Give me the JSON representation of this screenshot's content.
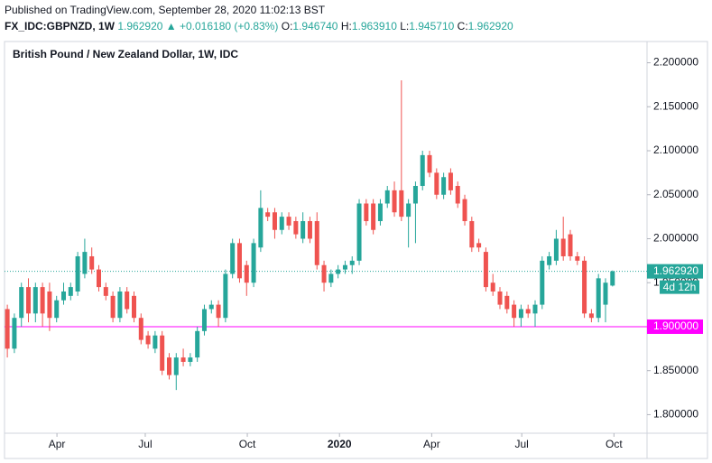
{
  "header": {
    "published": "Published on TradingView.com, September 28, 2020 11:02:13 BST",
    "symbol": "FX_IDC:GBPNZD, 1W",
    "last": "1.962920",
    "change": "▲ +0.016180 (+0.83%)",
    "ohlc": [
      {
        "label": "O:",
        "value": "1.946740"
      },
      {
        "label": "H:",
        "value": "1.963910"
      },
      {
        "label": "L:",
        "value": "1.945710"
      },
      {
        "label": "C:",
        "value": "1.962920"
      }
    ]
  },
  "chart_data": {
    "type": "candlestick",
    "title": "British Pound / New Zealand Dollar, 1W, IDC",
    "up_color": "#26a69a",
    "down_color": "#ef5350",
    "candles": [
      [
        1.92,
        1.925,
        1.865,
        1.875
      ],
      [
        1.875,
        1.915,
        1.87,
        1.91
      ],
      [
        1.91,
        1.95,
        1.9,
        1.945
      ],
      [
        1.945,
        1.955,
        1.905,
        1.915
      ],
      [
        1.915,
        1.95,
        1.905,
        1.945
      ],
      [
        1.945,
        1.95,
        1.9,
        1.915
      ],
      [
        1.94,
        1.95,
        1.895,
        1.91
      ],
      [
        1.91,
        1.935,
        1.905,
        1.93
      ],
      [
        1.93,
        1.95,
        1.925,
        1.94
      ],
      [
        1.935,
        1.95,
        1.93,
        1.945
      ],
      [
        1.94,
        1.985,
        1.935,
        1.98
      ],
      [
        1.96,
        2.0,
        1.955,
        1.985
      ],
      [
        1.98,
        1.99,
        1.96,
        1.965
      ],
      [
        1.965,
        1.97,
        1.94,
        1.945
      ],
      [
        1.945,
        1.95,
        1.93,
        1.935
      ],
      [
        1.935,
        1.94,
        1.905,
        1.91
      ],
      [
        1.91,
        1.945,
        1.905,
        1.94
      ],
      [
        1.94,
        1.945,
        1.915,
        1.92
      ],
      [
        1.935,
        1.94,
        1.905,
        1.91
      ],
      [
        1.91,
        1.915,
        1.88,
        1.885
      ],
      [
        1.89,
        1.895,
        1.875,
        1.88
      ],
      [
        1.875,
        1.895,
        1.87,
        1.89
      ],
      [
        1.89,
        1.895,
        1.845,
        1.85
      ],
      [
        1.865,
        1.87,
        1.84,
        1.845
      ],
      [
        1.845,
        1.87,
        1.828,
        1.865
      ],
      [
        1.865,
        1.875,
        1.855,
        1.86
      ],
      [
        1.86,
        1.87,
        1.855,
        1.865
      ],
      [
        1.865,
        1.9,
        1.86,
        1.895
      ],
      [
        1.895,
        1.925,
        1.89,
        1.92
      ],
      [
        1.92,
        1.93,
        1.915,
        1.925
      ],
      [
        1.925,
        1.93,
        1.9,
        1.91
      ],
      [
        1.91,
        1.965,
        1.905,
        1.96
      ],
      [
        1.96,
        2.0,
        1.955,
        1.995
      ],
      [
        1.995,
        2.0,
        1.95,
        1.955
      ],
      [
        1.97,
        1.975,
        1.935,
        1.95
      ],
      [
        1.95,
        2.0,
        1.945,
        1.995
      ],
      [
        1.99,
        2.055,
        1.985,
        2.035
      ],
      [
        2.03,
        2.035,
        2.02,
        2.025
      ],
      [
        2.03,
        2.035,
        2.0,
        2.01
      ],
      [
        2.01,
        2.03,
        2.005,
        2.025
      ],
      [
        2.025,
        2.03,
        2.01,
        2.015
      ],
      [
        2.02,
        2.025,
        2.0,
        2.005
      ],
      [
        2.0,
        2.03,
        1.995,
        2.02
      ],
      [
        2.02,
        2.025,
        1.995,
        2.0
      ],
      [
        2.02,
        2.03,
        1.965,
        1.97
      ],
      [
        1.97,
        1.975,
        1.94,
        1.95
      ],
      [
        1.95,
        1.965,
        1.945,
        1.96
      ],
      [
        1.96,
        1.97,
        1.955,
        1.965
      ],
      [
        1.965,
        1.975,
        1.96,
        1.97
      ],
      [
        1.97,
        1.98,
        1.96,
        1.975
      ],
      [
        1.975,
        2.045,
        1.97,
        2.04
      ],
      [
        2.04,
        2.045,
        2.015,
        2.02
      ],
      [
        2.04,
        2.045,
        2.005,
        2.01
      ],
      [
        2.02,
        2.045,
        2.015,
        2.04
      ],
      [
        2.04,
        2.06,
        2.035,
        2.055
      ],
      [
        2.055,
        2.065,
        2.025,
        2.03
      ],
      [
        2.055,
        2.18,
        2.02,
        2.025
      ],
      [
        2.025,
        2.045,
        1.99,
        2.04
      ],
      [
        2.04,
        2.065,
        1.995,
        2.06
      ],
      [
        2.06,
        2.1,
        2.055,
        2.095
      ],
      [
        2.095,
        2.1,
        2.07,
        2.075
      ],
      [
        2.075,
        2.08,
        2.045,
        2.05
      ],
      [
        2.05,
        2.075,
        2.045,
        2.07
      ],
      [
        2.075,
        2.08,
        2.05,
        2.055
      ],
      [
        2.06,
        2.065,
        2.035,
        2.04
      ],
      [
        2.045,
        2.05,
        2.015,
        2.02
      ],
      [
        2.02,
        2.025,
        1.985,
        1.99
      ],
      [
        1.995,
        2.0,
        1.985,
        1.99
      ],
      [
        1.985,
        1.99,
        1.94,
        1.945
      ],
      [
        1.95,
        1.96,
        1.935,
        1.94
      ],
      [
        1.94,
        1.945,
        1.92,
        1.925
      ],
      [
        1.935,
        1.94,
        1.915,
        1.92
      ],
      [
        1.925,
        1.93,
        1.9,
        1.91
      ],
      [
        1.91,
        1.925,
        1.9,
        1.92
      ],
      [
        1.92,
        1.925,
        1.91,
        1.915
      ],
      [
        1.915,
        1.93,
        1.9,
        1.925
      ],
      [
        1.925,
        1.98,
        1.92,
        1.975
      ],
      [
        1.97,
        1.985,
        1.965,
        1.98
      ],
      [
        1.975,
        2.01,
        1.97,
        2.0
      ],
      [
        2.0,
        2.025,
        1.975,
        1.98
      ],
      [
        2.005,
        2.01,
        1.975,
        1.98
      ],
      [
        1.98,
        1.985,
        1.97,
        1.975
      ],
      [
        1.975,
        1.98,
        1.91,
        1.915
      ],
      [
        1.915,
        1.92,
        1.905,
        1.91
      ],
      [
        1.91,
        1.96,
        1.905,
        1.955
      ],
      [
        1.925,
        1.955,
        1.905,
        1.95
      ],
      [
        1.94674,
        1.96391,
        1.94571,
        1.96292
      ]
    ],
    "xlim": [
      -0.4,
      90.9
    ],
    "xticks": [
      {
        "value": 7.05,
        "label": "Apr"
      },
      {
        "value": 19.6,
        "label": "Jul"
      },
      {
        "value": 34.1,
        "label": "Oct"
      },
      {
        "value": 47.2,
        "label": "2020"
      },
      {
        "value": 60.3,
        "label": "Apr"
      },
      {
        "value": 73.1,
        "label": "Jul"
      },
      {
        "value": 86.2,
        "label": "Oct"
      }
    ],
    "ylim": [
      1.7789,
      2.2221
    ],
    "yticks": [
      {
        "value": 1.8,
        "label": "1.800000"
      },
      {
        "value": 1.85,
        "label": "1.850000"
      },
      {
        "value": 1.9,
        "label": "1.900000"
      },
      {
        "value": 1.95,
        "label": "1.950000"
      },
      {
        "value": 2.0,
        "label": "2.000000"
      },
      {
        "value": 2.05,
        "label": "2.050000"
      },
      {
        "value": 2.1,
        "label": "2.100000"
      },
      {
        "value": 2.15,
        "label": "2.150000"
      },
      {
        "value": 2.2,
        "label": "2.200000"
      }
    ],
    "last_price": {
      "value": 1.96292,
      "label": "1.962920"
    },
    "countdown": "4d 12h",
    "hline": {
      "value": 1.9,
      "label": "1.900000",
      "color": "#ff00ff"
    }
  }
}
